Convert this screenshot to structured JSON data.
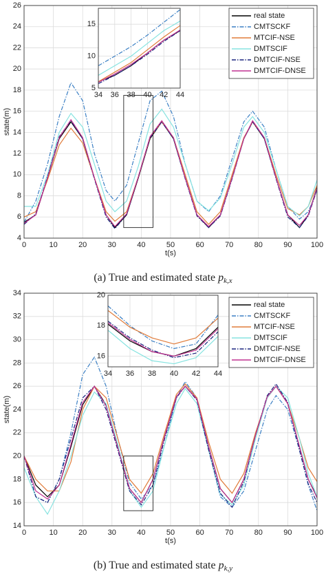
{
  "chart_data": [
    {
      "type": "line",
      "xlabel": "t(s)",
      "ylabel": "state(m)",
      "caption": "(a)  True and estimated state ",
      "caption_math": "p",
      "caption_sub": "k,x",
      "grid": true,
      "legend": "upper right",
      "xlim": [
        0,
        100
      ],
      "xticks": [
        0,
        10,
        20,
        30,
        40,
        50,
        60,
        70,
        80,
        90,
        100
      ],
      "ylim": [
        4,
        26
      ],
      "yticks": [
        4,
        6,
        8,
        10,
        12,
        14,
        16,
        18,
        20,
        22,
        24,
        26
      ],
      "x": [
        0,
        4,
        8,
        12,
        16,
        20,
        24,
        28,
        31,
        35,
        39,
        43,
        47,
        51,
        55,
        59,
        63,
        67,
        71,
        75,
        78,
        82,
        86,
        90,
        94,
        97,
        100
      ],
      "series": [
        {
          "name": "real state",
          "color": "#000000",
          "style": "solid",
          "values": [
            5.5,
            6.2,
            9.7,
            13.4,
            15,
            13.4,
            9.7,
            6.2,
            5,
            6.2,
            9.7,
            13.4,
            15,
            13.4,
            9.7,
            6.2,
            5,
            6.2,
            9.7,
            13.4,
            15,
            13.4,
            9.7,
            6.2,
            5,
            6.2,
            8.8
          ]
        },
        {
          "name": "CMTSCKF",
          "color": "#3a7fc4",
          "style": "dashdot",
          "values": [
            5.5,
            7.5,
            11,
            15.5,
            18.7,
            17,
            12,
            8.5,
            7.5,
            9,
            13,
            17,
            17.9,
            15.5,
            11,
            7.5,
            6.5,
            8,
            11.5,
            15,
            16,
            14.5,
            10.5,
            7,
            5.8,
            6.5,
            8.5
          ]
        },
        {
          "name": "MTCIF-NSE",
          "color": "#e07b39",
          "style": "solid",
          "values": [
            6,
            6.5,
            9.5,
            12.8,
            14.4,
            13,
            9.7,
            6.5,
            5.6,
            6.5,
            9.8,
            13.5,
            15,
            13.5,
            10,
            6.5,
            5.3,
            6.5,
            10,
            13.5,
            15,
            13.5,
            10,
            6.8,
            6.2,
            7,
            9
          ]
        },
        {
          "name": "DMTSCIF",
          "color": "#86e3e0",
          "style": "solid",
          "values": [
            7,
            7,
            10,
            14,
            15.8,
            14.5,
            11,
            7.5,
            6.5,
            7.5,
            10.8,
            14.8,
            16.2,
            14.5,
            11,
            7.5,
            6.6,
            7.8,
            11,
            14.5,
            15.5,
            14,
            10.5,
            7,
            6.1,
            7,
            9.5
          ]
        },
        {
          "name": "DMTCIF-NSE",
          "color": "#1a237e",
          "style": "dashdot",
          "values": [
            5.3,
            6.3,
            9.8,
            13.6,
            15.1,
            13.4,
            9.6,
            6,
            4.9,
            6.2,
            9.8,
            13.5,
            15,
            13.4,
            9.6,
            6.1,
            5,
            6.1,
            9.6,
            13.4,
            15,
            13.4,
            9.6,
            6,
            5,
            6.1,
            8.6
          ]
        },
        {
          "name": "DMTCIF-DNSE",
          "color": "#c03090",
          "style": "solid",
          "values": [
            5.4,
            6.2,
            9.7,
            13.5,
            15.2,
            13.5,
            9.7,
            6.2,
            5.1,
            6.3,
            9.8,
            13.6,
            15.1,
            13.5,
            9.7,
            6.2,
            5.1,
            6.2,
            9.7,
            13.4,
            15.1,
            13.5,
            9.7,
            6.2,
            5.2,
            6.2,
            8.7
          ]
        }
      ],
      "inset": {
        "xlim": [
          34,
          44
        ],
        "xticks": [
          34,
          36,
          38,
          40,
          42,
          44
        ],
        "ylim": [
          5,
          17.5
        ],
        "yticks": [
          5,
          10,
          15
        ],
        "x": [
          34,
          36,
          38,
          40,
          42,
          44
        ],
        "series": [
          {
            "values": [
              6,
              7,
              8.5,
              10.5,
              12.5,
              14
            ]
          },
          {
            "values": [
              8.5,
              10,
              11.5,
              13.3,
              15.3,
              17.3
            ]
          },
          {
            "values": [
              6,
              7.5,
              9,
              11,
              13,
              14.8
            ]
          },
          {
            "values": [
              7,
              8.5,
              10,
              12,
              14,
              15.5
            ]
          },
          {
            "values": [
              5.7,
              7,
              8.5,
              10.3,
              12.3,
              14
            ]
          },
          {
            "values": [
              5.9,
              7.2,
              8.7,
              10.5,
              12.5,
              14.1
            ]
          }
        ]
      }
    },
    {
      "type": "line",
      "xlabel": "t(s)",
      "ylabel": "state(m)",
      "caption": "(b)  True and estimated state ",
      "caption_math": "p",
      "caption_sub": "k,y",
      "grid": true,
      "legend": "upper right",
      "xlim": [
        0,
        100
      ],
      "xticks": [
        0,
        10,
        20,
        30,
        40,
        50,
        60,
        70,
        80,
        90,
        100
      ],
      "ylim": [
        14,
        34
      ],
      "yticks": [
        14,
        16,
        18,
        20,
        22,
        24,
        26,
        28,
        30,
        32,
        34
      ],
      "x": [
        0,
        4,
        8,
        12,
        16,
        20,
        24,
        28,
        32,
        36,
        40,
        44,
        48,
        52,
        55,
        59,
        63,
        67,
        71,
        75,
        79,
        83,
        86,
        90,
        94,
        97,
        100
      ],
      "series": [
        {
          "name": "real state",
          "color": "#000000",
          "style": "solid",
          "values": [
            20,
            17.5,
            16.5,
            17.5,
            20.8,
            24.4,
            26,
            24.4,
            20.8,
            17.2,
            16,
            18,
            21.7,
            25.1,
            26,
            24.9,
            20.8,
            17.2,
            16,
            18,
            21.8,
            25.1,
            26,
            24.5,
            20.8,
            18,
            16.5
          ]
        },
        {
          "name": "CMTSCKF",
          "color": "#3a7fc4",
          "style": "dashdot",
          "values": [
            20,
            16.5,
            16,
            18,
            22,
            27,
            28.5,
            26,
            21.5,
            17.7,
            16.3,
            17.5,
            21,
            25,
            26.4,
            25,
            20.5,
            16.5,
            15.6,
            17,
            20.5,
            24,
            25.2,
            24,
            20.5,
            17.5,
            15.3
          ]
        },
        {
          "name": "MTCIF-NSE",
          "color": "#e07b39",
          "style": "solid",
          "values": [
            20,
            18,
            17,
            17,
            19.5,
            24,
            26,
            25,
            21.5,
            18,
            16.8,
            18.5,
            22,
            25.3,
            26.2,
            25,
            21.2,
            18,
            16.8,
            18.5,
            22,
            25,
            26,
            24.5,
            21.5,
            19,
            17.8
          ]
        },
        {
          "name": "DMTSCIF",
          "color": "#86e3e0",
          "style": "solid",
          "values": [
            19,
            16.5,
            15,
            17,
            20,
            23.5,
            25.5,
            24.5,
            21,
            17,
            15.6,
            17,
            21,
            24.5,
            25.8,
            24.5,
            20.5,
            16.7,
            15.8,
            17.5,
            21.5,
            25,
            26,
            25,
            21.5,
            18.5,
            16.5
          ]
        },
        {
          "name": "DMTCIF-NSE",
          "color": "#1a237e",
          "style": "dashdot",
          "values": [
            20,
            16.5,
            16,
            18,
            21.5,
            25,
            26,
            24,
            20.5,
            17,
            15.8,
            17.5,
            21.5,
            25,
            26,
            24.8,
            20.5,
            16.8,
            15.6,
            17.8,
            21.8,
            25.2,
            26.2,
            24.6,
            20.5,
            17.6,
            16
          ]
        },
        {
          "name": "DMTCIF-DNSE",
          "color": "#c03090",
          "style": "solid",
          "values": [
            20,
            17,
            16.3,
            17.5,
            21,
            24.6,
            26,
            24.3,
            20.7,
            17.2,
            16,
            18,
            21.7,
            25.1,
            26,
            24.9,
            20.8,
            17.2,
            16,
            18,
            21.8,
            25.1,
            26,
            24.5,
            20.8,
            18,
            16.4
          ]
        }
      ],
      "inset": {
        "xlim": [
          34,
          44
        ],
        "xticks": [
          34,
          36,
          38,
          40,
          42,
          44
        ],
        "ylim": [
          15.3,
          20
        ],
        "yticks": [
          16,
          18,
          20
        ],
        "x": [
          34,
          36,
          38,
          40,
          42,
          44
        ],
        "series": [
          {
            "values": [
              18.1,
              17,
              16.3,
              16,
              16.5,
              17.9
            ]
          },
          {
            "values": [
              19.3,
              18,
              17,
              16.5,
              16.8,
              18.7
            ]
          },
          {
            "values": [
              19,
              17.9,
              17.2,
              16.8,
              17.2,
              18.5
            ]
          },
          {
            "values": [
              17.7,
              16.5,
              15.7,
              15.5,
              15.9,
              17.3
            ]
          },
          {
            "values": [
              18.3,
              17.2,
              16.4,
              15.9,
              16.2,
              17.6
            ]
          },
          {
            "values": [
              18.2,
              17.1,
              16.3,
              16,
              16.4,
              17.8
            ]
          }
        ]
      }
    }
  ]
}
